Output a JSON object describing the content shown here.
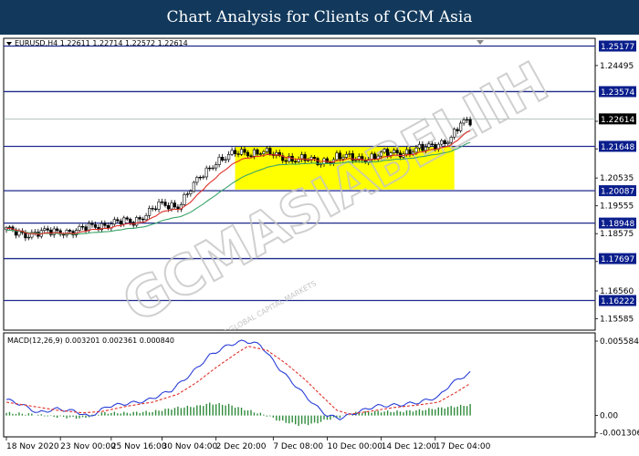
{
  "header": {
    "title": "Chart Analysis for Clients of GCM Asia"
  },
  "watermark": {
    "text": "GCMASIABELIIH",
    "subtext": "© GCM GLOBAL CAPITAL MARKETS"
  },
  "colors": {
    "header_bg": "#12395c",
    "level_line": "#1f2a8c",
    "level_tag": "#0a1e8c",
    "price_tag": "#000000",
    "consolidation_box": "#ffff00",
    "ma_fast": "#e0302a",
    "ma_slow": "#3aa56a",
    "macd_line": "#2a3fd8",
    "signal_line": "#e0302a",
    "histogram": "#2e8b3a"
  },
  "chart_data": [
    {
      "type": "candlestick",
      "symbol_info": "EURUSD,H4  1.22611 1.22714 1.22572 1.22614",
      "ylim": [
        1.1518,
        1.2545
      ],
      "y_ticks": [
        1.2449,
        1.2253,
        1.2156,
        1.20535,
        1.19555,
        1.18575,
        1.17595,
        1.1656,
        1.15585
      ],
      "y_tick_labels": [
        "1.24495",
        "",
        "",
        "1.20535",
        "1.19555",
        "1.18575",
        "",
        "1.16560",
        "1.15585"
      ],
      "levels": [
        1.25177,
        1.23574,
        1.21648,
        1.20087,
        1.18948,
        1.17697,
        1.16222
      ],
      "level_labels": [
        "1.25177",
        "1.23574",
        "1.21648",
        "1.20087",
        "1.18948",
        "1.17697",
        "1.16222"
      ],
      "current_price": 1.22614,
      "current_price_label": "1.22614",
      "consolidation_zone": {
        "x_start": 72,
        "x_end": 141,
        "y_low": 1.2013,
        "y_high": 1.2166
      },
      "x_labels": [
        "18 Nov 2020",
        "23 Nov 00:00",
        "25 Nov 16:00",
        "30 Nov 04:00",
        "2 Dec 20:00",
        "7 Dec 08:00",
        "10 Dec 00:00",
        "14 Dec 12:00",
        "17 Dec 04:00"
      ],
      "x_label_index": [
        0,
        17,
        33,
        49,
        66,
        84,
        101,
        118,
        135
      ],
      "trend_keypoints": [
        [
          0,
          1.1868
        ],
        [
          6,
          1.1858
        ],
        [
          12,
          1.186
        ],
        [
          18,
          1.1868
        ],
        [
          22,
          1.1865
        ],
        [
          28,
          1.1887
        ],
        [
          34,
          1.1894
        ],
        [
          40,
          1.1902
        ],
        [
          48,
          1.1955
        ],
        [
          54,
          1.1958
        ],
        [
          60,
          1.204
        ],
        [
          66,
          1.2115
        ],
        [
          73,
          1.214
        ],
        [
          80,
          1.2148
        ],
        [
          86,
          1.2125
        ],
        [
          92,
          1.2122
        ],
        [
          98,
          1.2108
        ],
        [
          104,
          1.2128
        ],
        [
          110,
          1.212
        ],
        [
          116,
          1.213
        ],
        [
          122,
          1.2142
        ],
        [
          128,
          1.215
        ],
        [
          132,
          1.2157
        ],
        [
          136,
          1.2178
        ],
        [
          140,
          1.2193
        ],
        [
          143,
          1.224
        ],
        [
          146,
          1.2255
        ]
      ]
    },
    {
      "type": "macd",
      "title": "MACD(12,26,9) 0.003201 0.002361 0.000840",
      "ylim": [
        -0.0016,
        0.0062
      ],
      "y_ticks": [
        0.005584,
        0.0,
        -0.001306
      ],
      "y_tick_labels": [
        "0.005584",
        "0.00",
        "-0.001306"
      ],
      "macd_keypoints": [
        [
          0,
          0.0012
        ],
        [
          5,
          0.0008
        ],
        [
          10,
          0.0002
        ],
        [
          16,
          0.0005
        ],
        [
          22,
          0.0003
        ],
        [
          26,
          -0.0001
        ],
        [
          32,
          0.0007
        ],
        [
          38,
          0.0009
        ],
        [
          44,
          0.0011
        ],
        [
          52,
          0.0019
        ],
        [
          58,
          0.0031
        ],
        [
          64,
          0.0045
        ],
        [
          70,
          0.0053
        ],
        [
          75,
          0.0056
        ],
        [
          80,
          0.0053
        ],
        [
          86,
          0.0035
        ],
        [
          92,
          0.002
        ],
        [
          97,
          0.0008
        ],
        [
          101,
          0.0
        ],
        [
          105,
          -0.0002
        ],
        [
          110,
          0.0002
        ],
        [
          116,
          0.0007
        ],
        [
          124,
          0.0008
        ],
        [
          130,
          0.001
        ],
        [
          136,
          0.0014
        ],
        [
          140,
          0.0024
        ],
        [
          146,
          0.0032
        ]
      ],
      "signal_keypoints": [
        [
          0,
          0.001
        ],
        [
          8,
          0.0007
        ],
        [
          16,
          0.0004
        ],
        [
          24,
          0.0002
        ],
        [
          30,
          0.0003
        ],
        [
          38,
          0.0007
        ],
        [
          46,
          0.001
        ],
        [
          54,
          0.0016
        ],
        [
          60,
          0.0025
        ],
        [
          66,
          0.0036
        ],
        [
          72,
          0.0046
        ],
        [
          76,
          0.0052
        ],
        [
          82,
          0.0049
        ],
        [
          88,
          0.0039
        ],
        [
          94,
          0.0027
        ],
        [
          100,
          0.0013
        ],
        [
          104,
          0.0004
        ],
        [
          108,
          0.0001
        ],
        [
          114,
          0.0003
        ],
        [
          122,
          0.0006
        ],
        [
          130,
          0.0008
        ],
        [
          136,
          0.001
        ],
        [
          142,
          0.0018
        ],
        [
          146,
          0.0024
        ]
      ],
      "histogram_keypoints": [
        [
          0,
          0.0002
        ],
        [
          8,
          0.0001
        ],
        [
          16,
          -0.0001
        ],
        [
          24,
          -0.0002
        ],
        [
          30,
          0.0002
        ],
        [
          38,
          0.0002
        ],
        [
          46,
          0.0003
        ],
        [
          54,
          0.0006
        ],
        [
          60,
          0.0007
        ],
        [
          64,
          0.0009
        ],
        [
          70,
          0.0008
        ],
        [
          76,
          0.0004
        ],
        [
          82,
          0.0
        ],
        [
          86,
          -0.0004
        ],
        [
          92,
          -0.0007
        ],
        [
          97,
          -0.0006
        ],
        [
          101,
          -0.0003
        ],
        [
          105,
          -0.0001
        ],
        [
          110,
          0.0002
        ],
        [
          116,
          0.0003
        ],
        [
          124,
          0.0003
        ],
        [
          130,
          0.0004
        ],
        [
          138,
          0.0006
        ],
        [
          146,
          0.0008
        ]
      ]
    }
  ]
}
